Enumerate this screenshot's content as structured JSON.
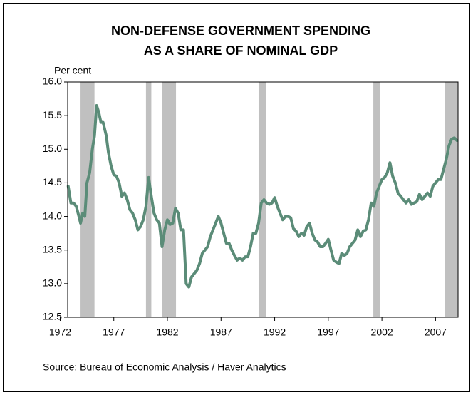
{
  "chart_data": {
    "type": "line",
    "title": [
      "NON-DEFENSE GOVERNMENT SPENDING",
      "AS A SHARE OF NOMINAL GDP"
    ],
    "y_label": "Per cent",
    "source": "Source: Bureau of Economic Analysis / Haver Analytics",
    "xlim": [
      1972.7,
      2009.1
    ],
    "xticks": [
      1972,
      1977,
      1982,
      1987,
      1992,
      1997,
      2002,
      2007
    ],
    "ylim": [
      12.5,
      16.0
    ],
    "yticks": [
      12.5,
      {
        "value": 13,
        "label": "13.0"
      },
      13.5,
      {
        "value": 14,
        "label": "14.0"
      },
      14.5,
      {
        "value": 15,
        "label": "15.0"
      },
      15.5,
      {
        "value": 16,
        "label": "16.0"
      }
    ],
    "recessions": [
      [
        1973.9,
        1975.2
      ],
      [
        1980.0,
        1980.5
      ],
      [
        1981.5,
        1982.8
      ],
      [
        1990.5,
        1991.2
      ],
      [
        2001.2,
        2001.8
      ],
      [
        2007.9,
        2009.1
      ]
    ],
    "recession_color": "#c0c0c0",
    "x": [
      1972.75,
      1973.0,
      1973.25,
      1973.5,
      1973.75,
      1973.9,
      1974.1,
      1974.3,
      1974.5,
      1974.75,
      1975.0,
      1975.2,
      1975.4,
      1975.6,
      1975.8,
      1976.0,
      1976.3,
      1976.5,
      1976.75,
      1977.0,
      1977.25,
      1977.5,
      1977.75,
      1978.0,
      1978.25,
      1978.5,
      1978.75,
      1979.0,
      1979.25,
      1979.5,
      1979.75,
      1980.0,
      1980.25,
      1980.5,
      1980.75,
      1981.0,
      1981.25,
      1981.5,
      1981.75,
      1982.0,
      1982.25,
      1982.5,
      1982.75,
      1983.0,
      1983.25,
      1983.5,
      1983.75,
      1984.0,
      1984.25,
      1984.5,
      1984.75,
      1985.0,
      1985.25,
      1985.5,
      1985.75,
      1986.0,
      1986.25,
      1986.5,
      1986.75,
      1987.0,
      1987.25,
      1987.5,
      1987.75,
      1988.0,
      1988.25,
      1988.5,
      1988.75,
      1989.0,
      1989.25,
      1989.5,
      1989.75,
      1990.0,
      1990.25,
      1990.5,
      1990.75,
      1991.0,
      1991.25,
      1991.5,
      1991.75,
      1992.0,
      1992.25,
      1992.5,
      1992.75,
      1993.0,
      1993.25,
      1993.5,
      1993.75,
      1994.0,
      1994.25,
      1994.5,
      1994.75,
      1995.0,
      1995.25,
      1995.5,
      1995.75,
      1996.0,
      1996.25,
      1996.5,
      1996.75,
      1997.0,
      1997.25,
      1997.5,
      1997.75,
      1998.0,
      1998.25,
      1998.5,
      1998.75,
      1999.0,
      1999.25,
      1999.5,
      1999.75,
      2000.0,
      2000.25,
      2000.5,
      2000.75,
      2001.0,
      2001.25,
      2001.5,
      2001.75,
      2002.0,
      2002.25,
      2002.5,
      2002.75,
      2003.0,
      2003.25,
      2003.5,
      2003.75,
      2004.0,
      2004.25,
      2004.5,
      2004.75,
      2005.0,
      2005.25,
      2005.5,
      2005.75,
      2006.0,
      2006.25,
      2006.5,
      2006.75,
      2007.0,
      2007.25,
      2007.5,
      2007.75,
      2008.0,
      2008.25,
      2008.5,
      2008.75,
      2009.0
    ],
    "series": [
      {
        "color": "#5b8c78",
        "values": [
          14.45,
          14.2,
          14.2,
          14.15,
          14.0,
          13.9,
          14.05,
          14.0,
          14.5,
          14.65,
          15.0,
          15.2,
          15.65,
          15.55,
          15.4,
          15.4,
          15.2,
          14.95,
          14.75,
          14.62,
          14.6,
          14.5,
          14.3,
          14.35,
          14.25,
          14.1,
          14.05,
          13.95,
          13.8,
          13.85,
          13.95,
          14.15,
          14.58,
          14.3,
          14.05,
          13.95,
          13.9,
          13.55,
          13.8,
          13.95,
          13.88,
          13.9,
          14.12,
          14.05,
          13.8,
          13.8,
          13.0,
          12.95,
          13.1,
          13.15,
          13.2,
          13.3,
          13.45,
          13.5,
          13.55,
          13.7,
          13.8,
          13.9,
          14.0,
          13.9,
          13.75,
          13.6,
          13.6,
          13.5,
          13.42,
          13.35,
          13.38,
          13.35,
          13.4,
          13.4,
          13.55,
          13.75,
          13.75,
          13.9,
          14.2,
          14.25,
          14.2,
          14.18,
          14.2,
          14.28,
          14.15,
          14.05,
          13.95,
          14.0,
          14.0,
          13.98,
          13.82,
          13.78,
          13.7,
          13.75,
          13.72,
          13.85,
          13.9,
          13.75,
          13.65,
          13.62,
          13.55,
          13.55,
          13.6,
          13.66,
          13.5,
          13.35,
          13.32,
          13.3,
          13.45,
          13.42,
          13.45,
          13.55,
          13.6,
          13.65,
          13.8,
          13.7,
          13.78,
          13.8,
          13.95,
          14.2,
          14.15,
          14.35,
          14.45,
          14.55,
          14.58,
          14.65,
          14.8,
          14.6,
          14.5,
          14.35,
          14.3,
          14.25,
          14.2,
          14.25,
          14.18,
          14.2,
          14.22,
          14.33,
          14.25,
          14.3,
          14.35,
          14.3,
          14.45,
          14.5,
          14.55,
          14.55,
          14.7,
          14.85,
          15.05,
          15.15,
          15.17,
          15.13
        ]
      }
    ]
  }
}
